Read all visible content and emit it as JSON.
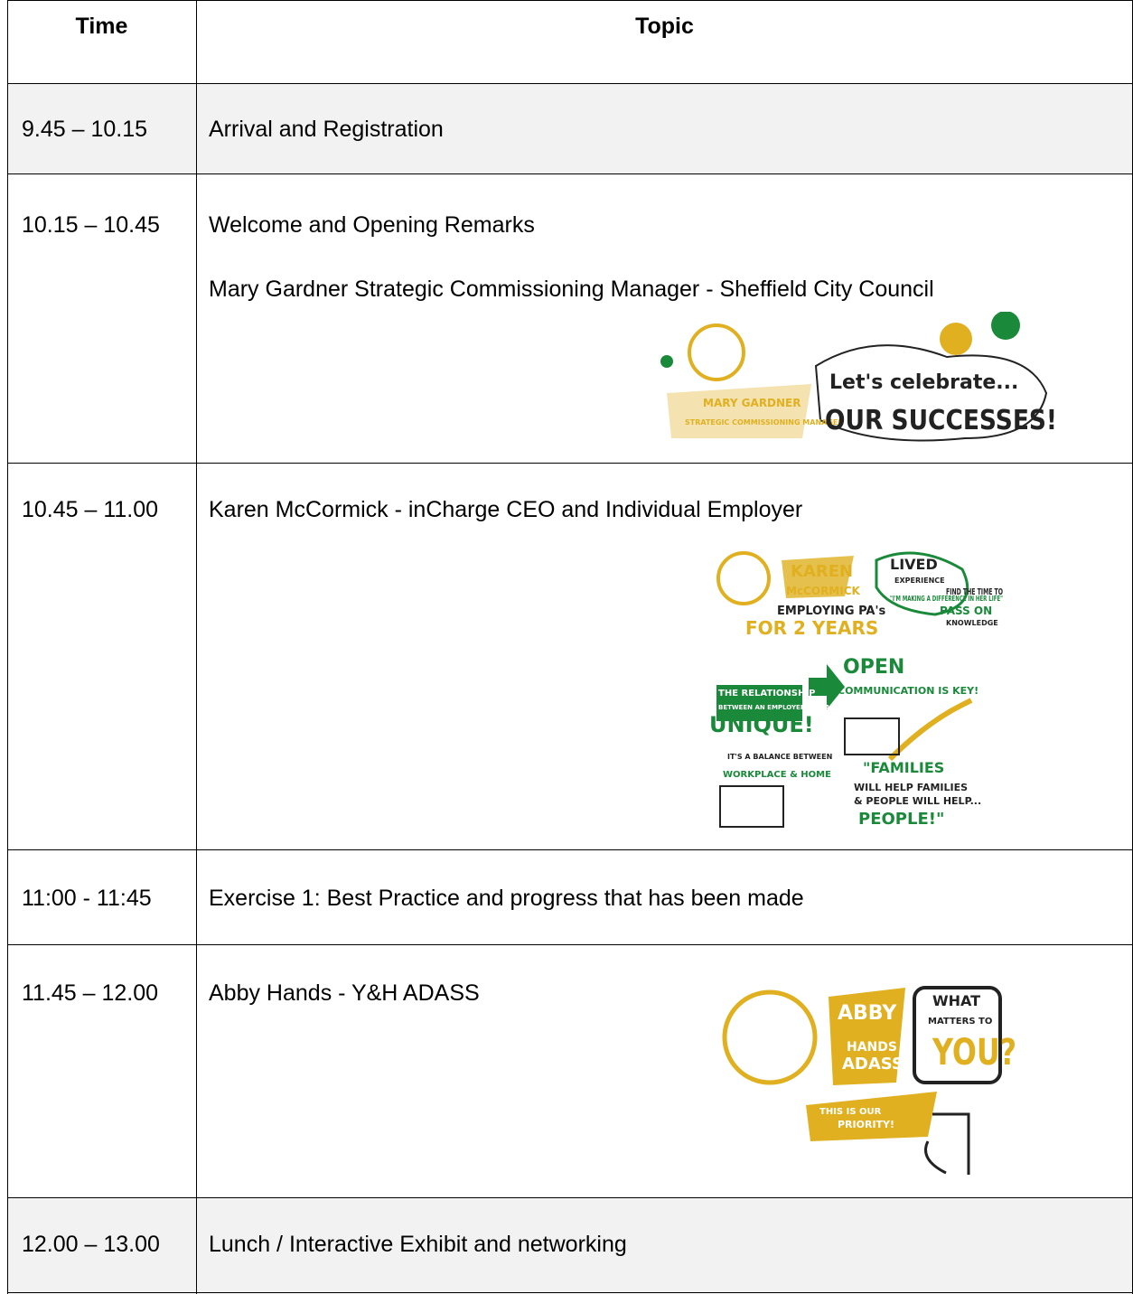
{
  "header": {
    "time": "Time",
    "topic": "Topic"
  },
  "rows": [
    {
      "time": "9.45 – 10.15",
      "lines": [
        "Arrival and Registration"
      ]
    },
    {
      "time": "10.15 – 10.45",
      "lines": [
        "Welcome and Opening Remarks",
        "Mary Gardner  Strategic Commissioning Manager - Sheffield City Council"
      ],
      "illustration": [
        "MARY GARDNER",
        "STRATEGIC COMMISSIONING MANAGER",
        "Let's celebrate...",
        "OUR SUCCESSES!"
      ]
    },
    {
      "time": "10.45 – 11.00",
      "lines": [
        "Karen McCormick - inCharge CEO and Individual Employer"
      ],
      "illustration": [
        "KAREN",
        "McCORMICK",
        "EMPLOYING PA's",
        "FOR 2 YEARS",
        "LIVED",
        "EXPERIENCE",
        "\"I'M MAKING A DIFFERENCE IN HER LIFE\"",
        "FIND THE TIME TO",
        "PASS ON",
        "KNOWLEDGE",
        "OPEN",
        "COMMUNICATION IS KEY!",
        "THE RELATIONSHIP",
        "BETWEEN AN EMPLOYER AND A PA IS...",
        "UNIQUE!",
        "IT'S A BALANCE BETWEEN",
        "WORKPLACE & HOME",
        "\"FAMILIES",
        "WILL HELP FAMILIES",
        "& PEOPLE WILL HELP...",
        "PEOPLE!\""
      ]
    },
    {
      "time": "11:00 - 11:45",
      "lines": [
        "Exercise 1: Best Practice and progress that has been made"
      ]
    },
    {
      "time": "11.45 – 12.00",
      "lines": [
        "Abby Hands - Y&H ADASS"
      ],
      "illustration": [
        "ABBY",
        "HANDS",
        "ADASS",
        "WHAT",
        "MATTERS TO",
        "YOU?",
        "THIS IS OUR",
        "PRIORITY!"
      ]
    },
    {
      "time": "12.00 – 13.00",
      "lines": [
        "Lunch / Interactive Exhibit and networking"
      ]
    }
  ]
}
